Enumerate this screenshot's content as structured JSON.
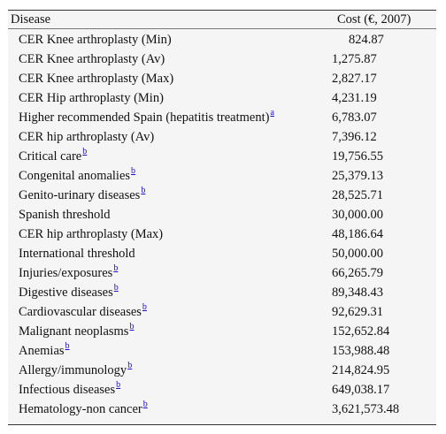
{
  "table": {
    "header": {
      "disease": "Disease",
      "cost": "Cost (€, 2007)"
    },
    "rows": [
      {
        "disease": "CER Knee arthroplasty (Min)",
        "note": "",
        "cost": "824.87",
        "indent": true
      },
      {
        "disease": "CER Knee arthroplasty (Av)",
        "note": "",
        "cost": "1,275.87"
      },
      {
        "disease": "CER Knee arthroplasty (Max)",
        "note": "",
        "cost": "2,827.17"
      },
      {
        "disease": "CER Hip arthroplasty (Min)",
        "note": "",
        "cost": "4,231.19"
      },
      {
        "disease": "Higher recommended Spain (hepatitis treatment)",
        "note": "a",
        "cost": "6,783.07"
      },
      {
        "disease": "CER hip arthroplasty (Av)",
        "note": "",
        "cost": "7,396.12"
      },
      {
        "disease": "Critical care",
        "note": "b",
        "cost": "19,756.55"
      },
      {
        "disease": "Congenital anomalies",
        "note": "b",
        "cost": "25,379.13"
      },
      {
        "disease": "Genito-urinary diseases",
        "note": "b",
        "cost": "28,525.71"
      },
      {
        "disease": "Spanish threshold",
        "note": "",
        "cost": "30,000.00"
      },
      {
        "disease": "CER hip arthroplasty (Max)",
        "note": "",
        "cost": "48,186.64"
      },
      {
        "disease": "International threshold",
        "note": "",
        "cost": "50,000.00"
      },
      {
        "disease": "Injuries/exposures",
        "note": "b",
        "cost": "66,265.79"
      },
      {
        "disease": "Digestive diseases",
        "note": "b",
        "cost": "89,348.43"
      },
      {
        "disease": "Cardiovascular diseases",
        "note": "b",
        "cost": "92,629.31"
      },
      {
        "disease": "Malignant neoplasms",
        "note": "b",
        "cost": "152,652.84"
      },
      {
        "disease": "Anemias",
        "note": "b",
        "cost": "153,988.48"
      },
      {
        "disease": "Allergy/immunology",
        "note": "b",
        "cost": "214,824.95"
      },
      {
        "disease": "Infectious diseases",
        "note": "b",
        "cost": "649,038.17"
      },
      {
        "disease": "Hematology-non cancer",
        "note": "b",
        "cost": "3,621,573.48"
      }
    ]
  }
}
